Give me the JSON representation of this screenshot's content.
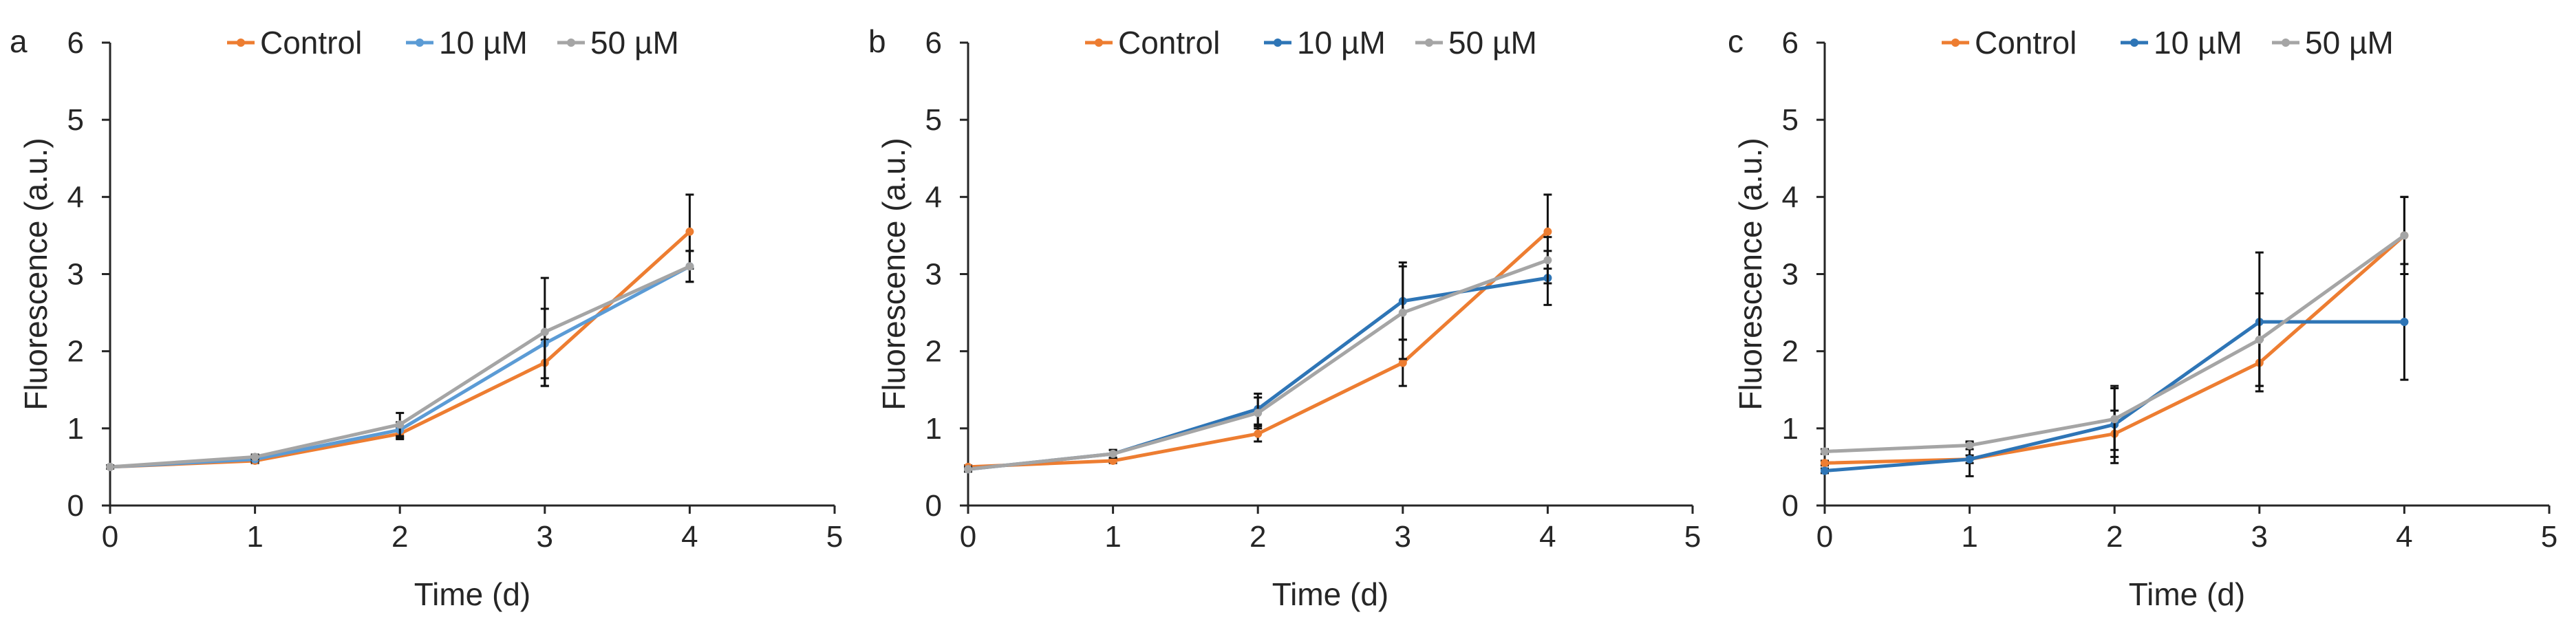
{
  "figure": {
    "panel_letters": [
      "a",
      "b",
      "c"
    ]
  },
  "chart_data": [
    {
      "type": "line",
      "panel": "a",
      "title": "",
      "xlabel": "Time (d)",
      "ylabel": "Fluorescence (a.u.)",
      "xlim": [
        0,
        5
      ],
      "ylim": [
        0,
        6
      ],
      "xticks": [
        0,
        1,
        2,
        3,
        4,
        5
      ],
      "yticks": [
        0,
        1,
        2,
        3,
        4,
        5,
        6
      ],
      "grid": false,
      "legend": "top",
      "x": [
        0,
        1,
        2,
        3,
        4
      ],
      "series": [
        {
          "name": "Control",
          "color": "#ED7D31",
          "values": [
            0.5,
            0.58,
            0.93,
            1.85,
            3.55
          ],
          "err": [
            0.02,
            0.03,
            0.07,
            0.3,
            0.48
          ]
        },
        {
          "name": "10 µM",
          "color": "#5B9BD5",
          "values": [
            0.5,
            0.6,
            0.98,
            2.1,
            3.1
          ],
          "err": [
            0.02,
            0.03,
            0.1,
            0.45,
            0.2
          ]
        },
        {
          "name": "50 µM",
          "color": "#A5A5A5",
          "values": [
            0.5,
            0.63,
            1.05,
            2.25,
            3.1
          ],
          "err": [
            0.02,
            0.03,
            0.15,
            0.7,
            0.2
          ]
        }
      ]
    },
    {
      "type": "line",
      "panel": "b",
      "title": "",
      "xlabel": "Time (d)",
      "ylabel": "Fluorescence (a.u.)",
      "xlim": [
        0,
        5
      ],
      "ylim": [
        0,
        6
      ],
      "xticks": [
        0,
        1,
        2,
        3,
        4,
        5
      ],
      "yticks": [
        0,
        1,
        2,
        3,
        4,
        5,
        6
      ],
      "grid": false,
      "legend": "top",
      "x": [
        0,
        1,
        2,
        3,
        4
      ],
      "series": [
        {
          "name": "Control",
          "color": "#ED7D31",
          "values": [
            0.5,
            0.58,
            0.93,
            1.85,
            3.55
          ],
          "err": [
            0.02,
            0.03,
            0.1,
            0.3,
            0.48
          ]
        },
        {
          "name": "10 µM",
          "color": "#2E75B6",
          "values": [
            0.47,
            0.67,
            1.25,
            2.65,
            2.95
          ],
          "err": [
            0.03,
            0.05,
            0.2,
            0.5,
            0.35
          ]
        },
        {
          "name": "50 µM",
          "color": "#A5A5A5",
          "values": [
            0.47,
            0.67,
            1.2,
            2.5,
            3.18
          ],
          "err": [
            0.03,
            0.05,
            0.2,
            0.6,
            0.3
          ]
        }
      ]
    },
    {
      "type": "line",
      "panel": "c",
      "title": "",
      "xlabel": "Time (d)",
      "ylabel": "Fluorescence (a.u.)",
      "xlim": [
        0,
        5
      ],
      "ylim": [
        0,
        6
      ],
      "xticks": [
        0,
        1,
        2,
        3,
        4,
        5
      ],
      "yticks": [
        0,
        1,
        2,
        3,
        4,
        5,
        6
      ],
      "grid": false,
      "legend": "top",
      "x": [
        0,
        1,
        2,
        3,
        4
      ],
      "series": [
        {
          "name": "Control",
          "color": "#ED7D31",
          "values": [
            0.55,
            0.6,
            0.93,
            1.85,
            3.5
          ],
          "err": [
            0.03,
            0.05,
            0.3,
            0.3,
            0.5
          ]
        },
        {
          "name": "10 µM",
          "color": "#2E75B6",
          "values": [
            0.45,
            0.6,
            1.05,
            2.38,
            2.38
          ],
          "err": [
            0.03,
            0.22,
            0.5,
            0.9,
            0.75
          ]
        },
        {
          "name": "50 µM",
          "color": "#A5A5A5",
          "values": [
            0.7,
            0.78,
            1.12,
            2.15,
            3.5
          ],
          "err": [
            0.03,
            0.05,
            0.4,
            0.6,
            0.5
          ]
        }
      ]
    }
  ]
}
